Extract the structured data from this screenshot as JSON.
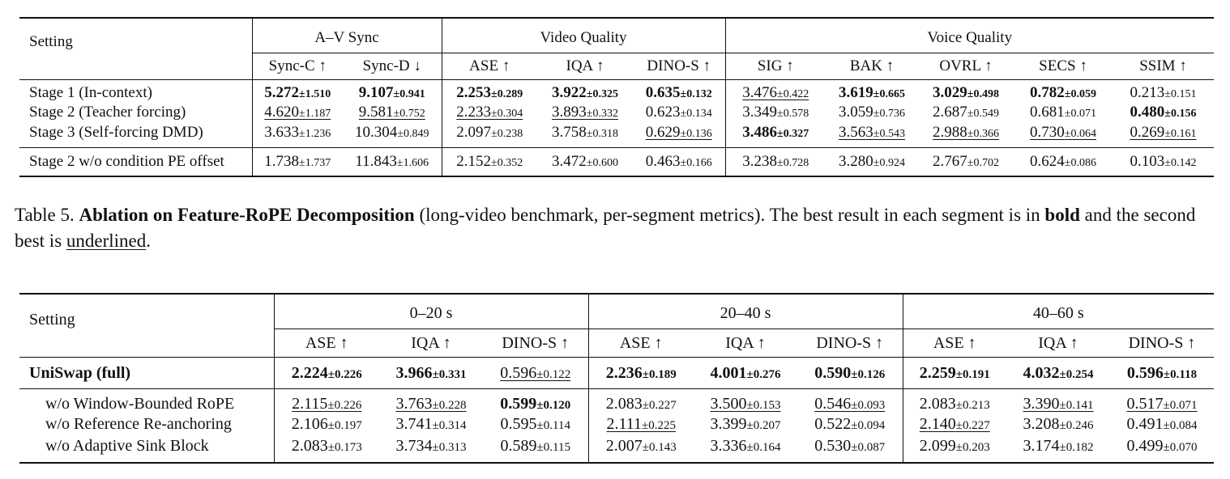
{
  "table4": {
    "setting_header": "Setting",
    "groups": [
      {
        "label": "A–V Sync",
        "cols": [
          "Sync-C ↑",
          "Sync-D ↓"
        ]
      },
      {
        "label": "Video Quality",
        "cols": [
          "ASE ↑",
          "IQA ↑",
          "DINO-S ↑"
        ]
      },
      {
        "label": "Voice Quality",
        "cols": [
          "SIG ↑",
          "BAK ↑",
          "OVRL ↑",
          "SECS ↑",
          "SSIM ↑"
        ]
      }
    ],
    "rows": [
      {
        "setting": "Stage 1 (In-context)",
        "cells": [
          {
            "v": "5.272",
            "sd": "±1.510",
            "s": "b"
          },
          {
            "v": "9.107",
            "sd": "±0.941",
            "s": "b"
          },
          {
            "v": "2.253",
            "sd": "±0.289",
            "s": "b"
          },
          {
            "v": "3.922",
            "sd": "±0.325",
            "s": "b"
          },
          {
            "v": "0.635",
            "sd": "±0.132",
            "s": "b"
          },
          {
            "v": "3.476",
            "sd": "±0.422",
            "s": "u"
          },
          {
            "v": "3.619",
            "sd": "±0.665",
            "s": "b"
          },
          {
            "v": "3.029",
            "sd": "±0.498",
            "s": "b"
          },
          {
            "v": "0.782",
            "sd": "±0.059",
            "s": "b"
          },
          {
            "v": "0.213",
            "sd": "±0.151",
            "s": ""
          }
        ]
      },
      {
        "setting": "Stage 2 (Teacher forcing)",
        "cells": [
          {
            "v": "4.620",
            "sd": "±1.187",
            "s": "u"
          },
          {
            "v": "9.581",
            "sd": "±0.752",
            "s": "u"
          },
          {
            "v": "2.233",
            "sd": "±0.304",
            "s": "u"
          },
          {
            "v": "3.893",
            "sd": "±0.332",
            "s": "u"
          },
          {
            "v": "0.623",
            "sd": "±0.134",
            "s": ""
          },
          {
            "v": "3.349",
            "sd": "±0.578",
            "s": ""
          },
          {
            "v": "3.059",
            "sd": "±0.736",
            "s": ""
          },
          {
            "v": "2.687",
            "sd": "±0.549",
            "s": ""
          },
          {
            "v": "0.681",
            "sd": "±0.071",
            "s": ""
          },
          {
            "v": "0.480",
            "sd": "±0.156",
            "s": "b"
          }
        ]
      },
      {
        "setting": "Stage 3 (Self-forcing DMD)",
        "cells": [
          {
            "v": "3.633",
            "sd": "±1.236",
            "s": ""
          },
          {
            "v": "10.304",
            "sd": "±0.849",
            "s": ""
          },
          {
            "v": "2.097",
            "sd": "±0.238",
            "s": ""
          },
          {
            "v": "3.758",
            "sd": "±0.318",
            "s": ""
          },
          {
            "v": "0.629",
            "sd": "±0.136",
            "s": "u"
          },
          {
            "v": "3.486",
            "sd": "±0.327",
            "s": "b"
          },
          {
            "v": "3.563",
            "sd": "±0.543",
            "s": "u"
          },
          {
            "v": "2.988",
            "sd": "±0.366",
            "s": "u"
          },
          {
            "v": "0.730",
            "sd": "±0.064",
            "s": "u"
          },
          {
            "v": "0.269",
            "sd": "±0.161",
            "s": "u"
          }
        ]
      },
      {
        "setting": "Stage 2 w/o condition PE offset",
        "cells": [
          {
            "v": "1.738",
            "sd": "±1.737",
            "s": ""
          },
          {
            "v": "11.843",
            "sd": "±1.606",
            "s": ""
          },
          {
            "v": "2.152",
            "sd": "±0.352",
            "s": ""
          },
          {
            "v": "3.472",
            "sd": "±0.600",
            "s": ""
          },
          {
            "v": "0.463",
            "sd": "±0.166",
            "s": ""
          },
          {
            "v": "3.238",
            "sd": "±0.728",
            "s": ""
          },
          {
            "v": "3.280",
            "sd": "±0.924",
            "s": ""
          },
          {
            "v": "2.767",
            "sd": "±0.702",
            "s": ""
          },
          {
            "v": "0.624",
            "sd": "±0.086",
            "s": ""
          },
          {
            "v": "0.103",
            "sd": "±0.142",
            "s": ""
          }
        ]
      }
    ]
  },
  "caption": {
    "prefix": "Table 5. ",
    "title": "Ablation on Feature-RoPE Decomposition",
    "text1": " (long-video benchmark, per-segment metrics). The best result in each segment is in ",
    "bold_word": "bold",
    "text2": " and the second best is ",
    "underlined_word": "underlined",
    "text3": "."
  },
  "table5": {
    "setting_header": "Setting",
    "groups": [
      {
        "label": "0–20 s",
        "cols": [
          "ASE ↑",
          "IQA ↑",
          "DINO-S ↑"
        ]
      },
      {
        "label": "20–40 s",
        "cols": [
          "ASE ↑",
          "IQA ↑",
          "DINO-S ↑"
        ]
      },
      {
        "label": "40–60 s",
        "cols": [
          "ASE ↑",
          "IQA ↑",
          "DINO-S ↑"
        ]
      }
    ],
    "rows": [
      {
        "setting": "UniSwap (full)",
        "setting_bold": true,
        "cells": [
          {
            "v": "2.224",
            "sd": "±0.226",
            "s": "b"
          },
          {
            "v": "3.966",
            "sd": "±0.331",
            "s": "b"
          },
          {
            "v": "0.596",
            "sd": "±0.122",
            "s": "u"
          },
          {
            "v": "2.236",
            "sd": "±0.189",
            "s": "b"
          },
          {
            "v": "4.001",
            "sd": "±0.276",
            "s": "b"
          },
          {
            "v": "0.590",
            "sd": "±0.126",
            "s": "b"
          },
          {
            "v": "2.259",
            "sd": "±0.191",
            "s": "b"
          },
          {
            "v": "4.032",
            "sd": "±0.254",
            "s": "b"
          },
          {
            "v": "0.596",
            "sd": "±0.118",
            "s": "b"
          }
        ]
      },
      {
        "setting": "w/o Window-Bounded RoPE",
        "cells": [
          {
            "v": "2.115",
            "sd": "±0.226",
            "s": "u"
          },
          {
            "v": "3.763",
            "sd": "±0.228",
            "s": "u"
          },
          {
            "v": "0.599",
            "sd": "±0.120",
            "s": "b"
          },
          {
            "v": "2.083",
            "sd": "±0.227",
            "s": ""
          },
          {
            "v": "3.500",
            "sd": "±0.153",
            "s": "u"
          },
          {
            "v": "0.546",
            "sd": "±0.093",
            "s": "u"
          },
          {
            "v": "2.083",
            "sd": "±0.213",
            "s": ""
          },
          {
            "v": "3.390",
            "sd": "±0.141",
            "s": "u"
          },
          {
            "v": "0.517",
            "sd": "±0.071",
            "s": "u"
          }
        ]
      },
      {
        "setting": "w/o Reference Re-anchoring",
        "cells": [
          {
            "v": "2.106",
            "sd": "±0.197",
            "s": ""
          },
          {
            "v": "3.741",
            "sd": "±0.314",
            "s": ""
          },
          {
            "v": "0.595",
            "sd": "±0.114",
            "s": ""
          },
          {
            "v": "2.111",
            "sd": "±0.225",
            "s": "u"
          },
          {
            "v": "3.399",
            "sd": "±0.207",
            "s": ""
          },
          {
            "v": "0.522",
            "sd": "±0.094",
            "s": ""
          },
          {
            "v": "2.140",
            "sd": "±0.227",
            "s": "u"
          },
          {
            "v": "3.208",
            "sd": "±0.246",
            "s": ""
          },
          {
            "v": "0.491",
            "sd": "±0.084",
            "s": ""
          }
        ]
      },
      {
        "setting": "w/o Adaptive Sink Block",
        "cells": [
          {
            "v": "2.083",
            "sd": "±0.173",
            "s": ""
          },
          {
            "v": "3.734",
            "sd": "±0.313",
            "s": ""
          },
          {
            "v": "0.589",
            "sd": "±0.115",
            "s": ""
          },
          {
            "v": "2.007",
            "sd": "±0.143",
            "s": ""
          },
          {
            "v": "3.336",
            "sd": "±0.164",
            "s": ""
          },
          {
            "v": "0.530",
            "sd": "±0.087",
            "s": ""
          },
          {
            "v": "2.099",
            "sd": "±0.203",
            "s": ""
          },
          {
            "v": "3.174",
            "sd": "±0.182",
            "s": ""
          },
          {
            "v": "0.499",
            "sd": "±0.070",
            "s": ""
          }
        ]
      }
    ]
  }
}
